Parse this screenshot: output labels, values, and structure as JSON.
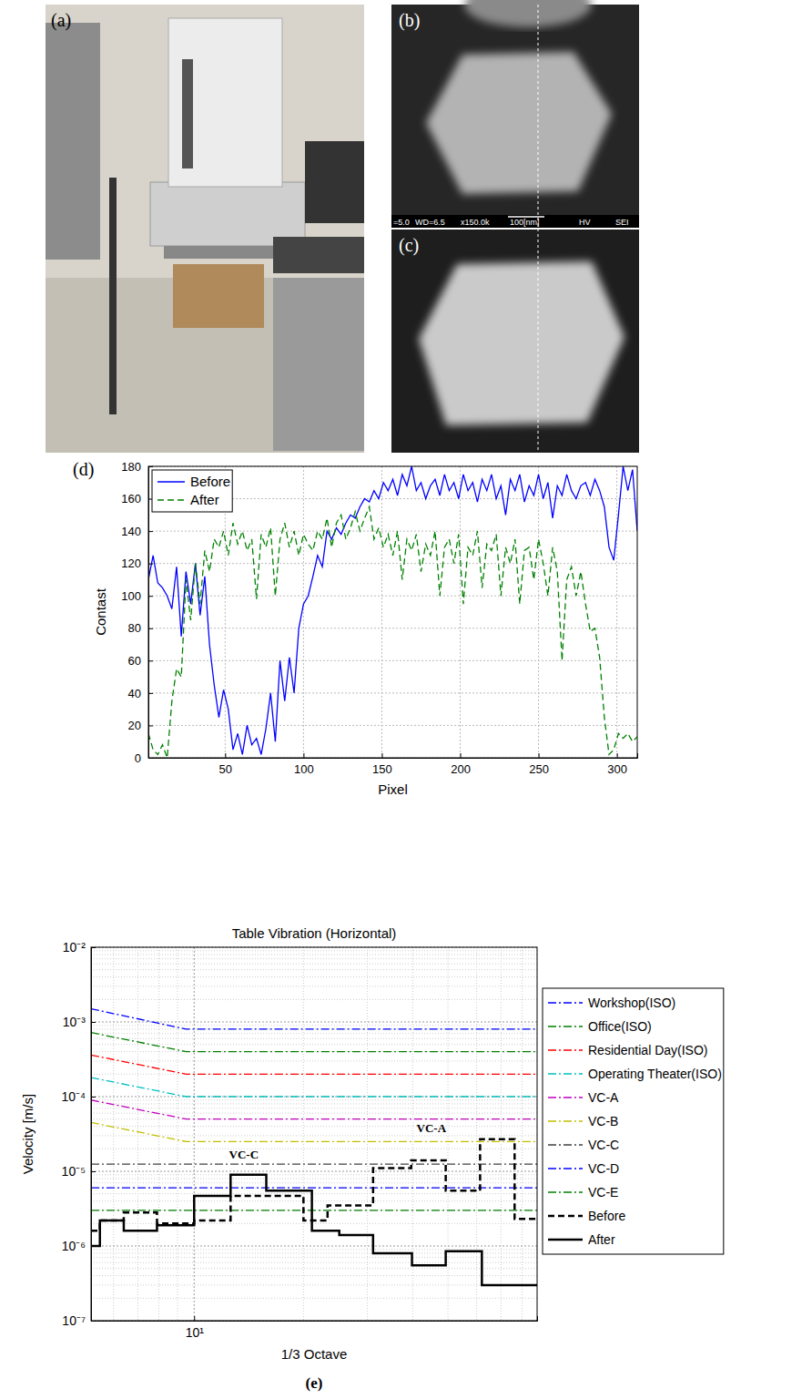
{
  "images": [
    {
      "label": "(a)"
    },
    {
      "label": "(b)",
      "info": [
        "=5.0",
        "WD=6.5",
        "x150.0k",
        "100[nm]",
        "HV",
        "SEI"
      ]
    },
    {
      "label": "(c)"
    }
  ],
  "chart_data": [
    {
      "type": "line",
      "label": "(d)",
      "xlabel": "Pixel",
      "ylabel": "Contast",
      "x": [
        1,
        4,
        7,
        10,
        13,
        16,
        19,
        22,
        25,
        28,
        31,
        34,
        37,
        40,
        43,
        46,
        49,
        52,
        55,
        58,
        61,
        64,
        67,
        70,
        73,
        76,
        79,
        82,
        85,
        88,
        91,
        94,
        97,
        100,
        103,
        106,
        109,
        112,
        115,
        118,
        121,
        124,
        127,
        130,
        133,
        136,
        139,
        142,
        145,
        148,
        151,
        154,
        157,
        160,
        163,
        166,
        169,
        172,
        175,
        178,
        181,
        184,
        187,
        190,
        193,
        196,
        199,
        202,
        205,
        208,
        211,
        214,
        217,
        220,
        223,
        226,
        229,
        232,
        235,
        238,
        241,
        244,
        247,
        250,
        253,
        256,
        259,
        262,
        265,
        268,
        271,
        274,
        277,
        280,
        283,
        286,
        289,
        292,
        295,
        298,
        301,
        304,
        307,
        310,
        313
      ],
      "series": [
        {
          "name": "Before",
          "color": "#0000ff",
          "line_style": "solid",
          "values": [
            110,
            125,
            108,
            105,
            100,
            92,
            118,
            75,
            115,
            95,
            120,
            88,
            112,
            70,
            45,
            25,
            42,
            30,
            5,
            15,
            2,
            20,
            8,
            12,
            2,
            18,
            40,
            10,
            60,
            35,
            62,
            40,
            80,
            95,
            100,
            112,
            125,
            118,
            140,
            135,
            142,
            138,
            145,
            150,
            148,
            155,
            160,
            158,
            165,
            160,
            170,
            165,
            172,
            162,
            175,
            168,
            180,
            165,
            170,
            160,
            168,
            172,
            162,
            175,
            165,
            170,
            160,
            175,
            165,
            170,
            158,
            172,
            165,
            175,
            160,
            168,
            150,
            172,
            165,
            175,
            158,
            168,
            162,
            175,
            160,
            170,
            148,
            168,
            162,
            175,
            165,
            160,
            168,
            170,
            162,
            172,
            165,
            155,
            130,
            122,
            150,
            180,
            165,
            178,
            140
          ]
        },
        {
          "name": "After",
          "color": "#008000",
          "line_style": "dashed",
          "values": [
            15,
            5,
            2,
            8,
            0,
            35,
            55,
            50,
            110,
            85,
            120,
            95,
            128,
            115,
            135,
            130,
            140,
            125,
            145,
            132,
            140,
            128,
            135,
            98,
            138,
            130,
            142,
            100,
            135,
            145,
            130,
            140,
            125,
            138,
            132,
            128,
            140,
            135,
            148,
            130,
            145,
            150,
            135,
            142,
            152,
            140,
            148,
            155,
            135,
            142,
            130,
            138,
            125,
            140,
            110,
            135,
            128,
            138,
            115,
            132,
            125,
            140,
            100,
            130,
            135,
            120,
            138,
            95,
            130,
            125,
            140,
            105,
            132,
            128,
            138,
            100,
            130,
            120,
            135,
            95,
            128,
            130,
            110,
            135,
            120,
            100,
            130,
            115,
            60,
            110,
            118,
            100,
            115,
            95,
            78,
            80,
            62,
            25,
            2,
            5,
            15,
            12,
            15,
            10,
            13
          ]
        }
      ],
      "xlim": [
        1,
        313
      ],
      "ylim": [
        0,
        180
      ],
      "xticks": [
        50,
        100,
        150,
        200,
        250,
        300
      ],
      "yticks": [
        0,
        20,
        40,
        60,
        80,
        100,
        120,
        140,
        160,
        180
      ],
      "grid": true,
      "legend": "upper left"
    },
    {
      "type": "line",
      "label": "(e)",
      "title": "Table Vibration (Horizontal)",
      "xlabel": "1/3 Octave",
      "ylabel": "Velocity [m/s]",
      "log": true,
      "xlim": [
        5.2,
        88
      ],
      "ylim": [
        1e-07,
        0.01
      ],
      "xticks": [
        {
          "value": 10,
          "label": "10¹"
        }
      ],
      "yticks": [
        {
          "value": 1e-07,
          "label": "10⁻⁷"
        },
        {
          "value": 1e-06,
          "label": "10⁻⁶"
        },
        {
          "value": 1e-05,
          "label": "10⁻⁵"
        },
        {
          "value": 0.0001,
          "label": "10⁻⁴"
        },
        {
          "value": 0.001,
          "label": "10⁻³"
        },
        {
          "value": 0.01,
          "label": "10⁻²"
        }
      ],
      "grid": true,
      "legend": "right",
      "series": [
        {
          "name": "Workshop(ISO)",
          "type": "line",
          "color": "#0000ff",
          "line_style": "dashdot",
          "x": [
            5.2,
            9.5,
            88
          ],
          "values": [
            0.0015,
            0.0008,
            0.0008
          ]
        },
        {
          "name": "Office(ISO)",
          "type": "line",
          "color": "#008000",
          "line_style": "dashdot",
          "x": [
            5.2,
            9.5,
            88
          ],
          "values": [
            0.00072,
            0.0004,
            0.0004
          ]
        },
        {
          "name": "Residential Day(ISO)",
          "type": "line",
          "color": "#ff0000",
          "line_style": "dashdot",
          "x": [
            5.2,
            9.5,
            88
          ],
          "values": [
            0.00036,
            0.0002,
            0.0002
          ]
        },
        {
          "name": "Operating Theater(ISO)",
          "type": "line",
          "color": "#00bfbf",
          "line_style": "dashdot",
          "x": [
            5.2,
            9.5,
            88
          ],
          "values": [
            0.00018,
            0.0001,
            0.0001
          ]
        },
        {
          "name": "VC-A",
          "type": "line",
          "color": "#bf00bf",
          "line_style": "dashdot",
          "x": [
            5.2,
            9.5,
            88
          ],
          "values": [
            9e-05,
            5e-05,
            5e-05
          ]
        },
        {
          "name": "VC-B",
          "type": "line",
          "color": "#bfbf00",
          "line_style": "dashdot",
          "x": [
            5.2,
            9.5,
            88
          ],
          "values": [
            4.5e-05,
            2.5e-05,
            2.5e-05
          ]
        },
        {
          "name": "VC-C",
          "type": "line",
          "color": "#404040",
          "line_style": "dashdot",
          "x": [
            5.2,
            88
          ],
          "values": [
            1.25e-05,
            1.25e-05
          ]
        },
        {
          "name": "VC-D",
          "type": "line",
          "color": "#0000ff",
          "line_style": "dashdot",
          "x": [
            5.2,
            88
          ],
          "values": [
            6e-06,
            6e-06
          ]
        },
        {
          "name": "VC-E",
          "type": "line",
          "color": "#008000",
          "line_style": "dashdot",
          "x": [
            5.2,
            88
          ],
          "values": [
            3e-06,
            3e-06
          ]
        },
        {
          "name": "Before",
          "type": "step",
          "color": "#000000",
          "line_style": "dashed",
          "x": [
            5.2,
            5.5,
            6.4,
            7.9,
            10,
            12.6,
            20,
            23.3,
            31.1,
            39.6,
            49.3,
            61.3,
            76.3
          ],
          "values": [
            1.6e-06,
            2.2e-06,
            2.8e-06,
            2e-06,
            2.2e-06,
            4.7e-06,
            2.2e-06,
            3.5e-06,
            1.1e-05,
            1.4e-05,
            5.5e-06,
            2.7e-05,
            2.3e-06
          ]
        },
        {
          "name": "After",
          "type": "step",
          "color": "#000000",
          "line_style": "solid",
          "x": [
            5.2,
            5.5,
            6.4,
            7.9,
            10,
            12.6,
            15.8,
            21.1,
            25.1,
            31.1,
            39.8,
            49.3,
            62
          ],
          "values": [
            1e-06,
            2.2e-06,
            1.6e-06,
            1.9e-06,
            4.7e-06,
            9e-06,
            5.5e-06,
            1.6e-06,
            1.4e-06,
            8e-07,
            5.5e-07,
            8.5e-07,
            3e-07
          ]
        }
      ],
      "annotations": [
        {
          "text": "VC-C",
          "x": 13.7,
          "y": 1.5e-05
        },
        {
          "text": "VC-A",
          "x": 45,
          "y": 3.3e-05
        }
      ]
    }
  ]
}
